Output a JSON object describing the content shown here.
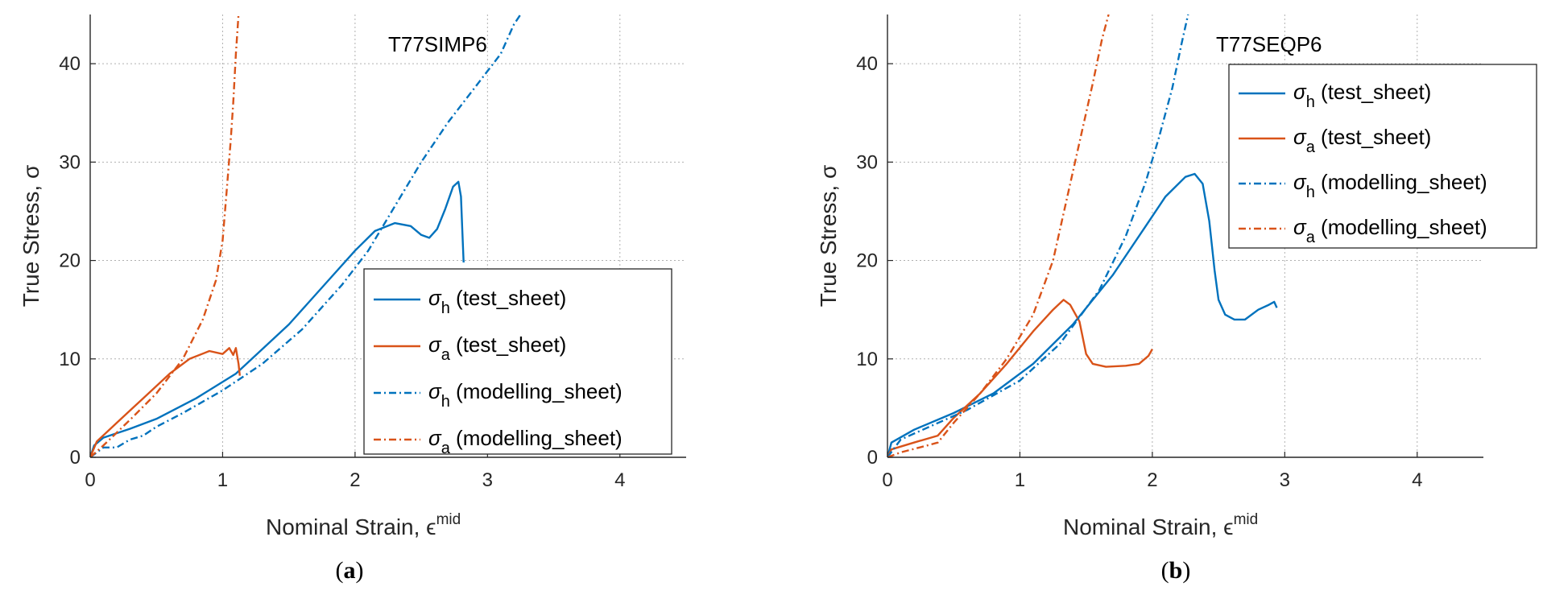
{
  "chart_data": [
    {
      "panel_caption": "a",
      "type": "line",
      "title": "T77SIMP6",
      "xlabel": "Nominal Strain, ϵ",
      "xlabel_sup": "mid",
      "ylabel": "True Stress, σ",
      "xlim": [
        0,
        4.5
      ],
      "ylim": [
        0,
        45
      ],
      "xticks": [
        0,
        1,
        2,
        3,
        4
      ],
      "yticks": [
        0,
        10,
        20,
        30,
        40
      ],
      "grid": true,
      "legend_position": "lower-right",
      "series": [
        {
          "name": "σ_h (test_sheet)",
          "sym": "σ",
          "sub": "h",
          "suffix": " (test_sheet)",
          "color": "#0072BD",
          "dash": "solid",
          "x": [
            0,
            0.03,
            0.1,
            0.3,
            0.5,
            0.8,
            1.1,
            1.5,
            1.8,
            2.0,
            2.15,
            2.3,
            2.42,
            2.5,
            2.56,
            2.62,
            2.68,
            2.74,
            2.78,
            2.8,
            2.81,
            2.82
          ],
          "y": [
            0,
            1.2,
            2.0,
            2.9,
            3.9,
            6.0,
            8.5,
            13.5,
            18.0,
            21.0,
            23.0,
            23.8,
            23.5,
            22.6,
            22.3,
            23.2,
            25.2,
            27.5,
            28.0,
            26.5,
            23.0,
            19.8
          ]
        },
        {
          "name": "σ_a (test_sheet)",
          "sym": "σ",
          "sub": "a",
          "suffix": " (test_sheet)",
          "color": "#D95319",
          "dash": "solid",
          "x": [
            0,
            0.05,
            0.2,
            0.4,
            0.6,
            0.75,
            0.9,
            1.0,
            1.05,
            1.08,
            1.1,
            1.12,
            1.13
          ],
          "y": [
            0,
            1.6,
            3.5,
            6.0,
            8.5,
            10.0,
            10.8,
            10.5,
            11.1,
            10.4,
            11.1,
            9.5,
            8.3
          ]
        },
        {
          "name": "σ_h (modelling_sheet)",
          "sym": "σ",
          "sub": "h",
          "suffix": " (modelling_sheet)",
          "color": "#0072BD",
          "dash": "dashdot",
          "x": [
            0,
            0.1,
            0.2,
            0.3,
            0.4,
            0.5,
            0.7,
            1.0,
            1.3,
            1.6,
            1.9,
            2.1,
            2.3,
            2.5,
            2.7,
            2.9,
            3.1,
            3.2,
            3.25
          ],
          "y": [
            0,
            1.0,
            1.0,
            1.8,
            2.2,
            3.1,
            4.5,
            6.8,
            9.5,
            13.0,
            17.5,
            21.0,
            25.5,
            30.0,
            34.0,
            37.5,
            41.0,
            44.0,
            45.0
          ]
        },
        {
          "name": "σ_a (modelling_sheet)",
          "sym": "σ",
          "sub": "a",
          "suffix": " (modelling_sheet)",
          "color": "#D95319",
          "dash": "dashdot",
          "x": [
            0,
            0.1,
            0.3,
            0.5,
            0.7,
            0.85,
            0.95,
            1.0,
            1.03,
            1.06,
            1.08,
            1.1,
            1.12
          ],
          "y": [
            0,
            1.2,
            3.8,
            6.5,
            10.0,
            14.0,
            18.0,
            22.0,
            27.0,
            32.0,
            36.0,
            41.0,
            45.0
          ]
        }
      ]
    },
    {
      "panel_caption": "b",
      "type": "line",
      "title": "T77SEQP6",
      "xlabel": "Nominal Strain, ϵ",
      "xlabel_sup": "mid",
      "ylabel": "True Stress, σ",
      "xlim": [
        0,
        4.5
      ],
      "ylim": [
        0,
        45
      ],
      "xticks": [
        0,
        1,
        2,
        3,
        4
      ],
      "yticks": [
        0,
        10,
        20,
        30,
        40
      ],
      "grid": true,
      "legend_position": "top-right",
      "series": [
        {
          "name": "σ_h (test_sheet)",
          "sym": "σ",
          "sub": "h",
          "suffix": " (test_sheet)",
          "color": "#0072BD",
          "dash": "solid",
          "x": [
            0,
            0.03,
            0.2,
            0.5,
            0.8,
            1.1,
            1.4,
            1.7,
            1.95,
            2.1,
            2.25,
            2.32,
            2.38,
            2.43,
            2.47,
            2.5,
            2.55,
            2.62,
            2.7,
            2.8,
            2.88,
            2.92,
            2.94
          ],
          "y": [
            0,
            1.5,
            2.8,
            4.5,
            6.5,
            9.5,
            13.5,
            18.5,
            23.5,
            26.5,
            28.5,
            28.8,
            27.8,
            24.0,
            19.0,
            16.0,
            14.5,
            14.0,
            14.0,
            15.0,
            15.5,
            15.8,
            15.2
          ]
        },
        {
          "name": "σ_a (test_sheet)",
          "sym": "σ",
          "sub": "a",
          "suffix": " (test_sheet)",
          "color": "#D95319",
          "dash": "solid",
          "x": [
            0,
            0.03,
            0.2,
            0.38,
            0.5,
            0.7,
            0.9,
            1.1,
            1.25,
            1.33,
            1.38,
            1.45,
            1.5,
            1.55,
            1.65,
            1.8,
            1.9,
            1.97,
            2.0
          ],
          "y": [
            0,
            0.8,
            1.5,
            2.2,
            4.0,
            6.5,
            9.5,
            12.8,
            15.0,
            16.0,
            15.5,
            13.8,
            10.5,
            9.5,
            9.2,
            9.3,
            9.5,
            10.3,
            11.0
          ]
        },
        {
          "name": "σ_h (modelling_sheet)",
          "sym": "σ",
          "sub": "h",
          "suffix": " (modelling_sheet)",
          "color": "#0072BD",
          "dash": "dashdot",
          "x": [
            0,
            0.1,
            0.3,
            0.6,
            1.0,
            1.3,
            1.6,
            1.8,
            1.95,
            2.05,
            2.15,
            2.22,
            2.27
          ],
          "y": [
            0,
            1.8,
            3.0,
            4.8,
            7.8,
            11.5,
            17.0,
            22.5,
            28.0,
            32.5,
            37.5,
            42.0,
            45.0
          ]
        },
        {
          "name": "σ_a (modelling_sheet)",
          "sym": "σ",
          "sub": "a",
          "suffix": " (modelling_sheet)",
          "color": "#D95319",
          "dash": "dashdot",
          "x": [
            0,
            0.1,
            0.3,
            0.38,
            0.5,
            0.7,
            0.9,
            1.1,
            1.25,
            1.35,
            1.45,
            1.55,
            1.62,
            1.67
          ],
          "y": [
            0,
            0.5,
            1.2,
            1.5,
            3.5,
            6.5,
            10.0,
            14.5,
            20.0,
            26.0,
            32.0,
            38.0,
            42.5,
            45.0
          ]
        }
      ]
    }
  ]
}
